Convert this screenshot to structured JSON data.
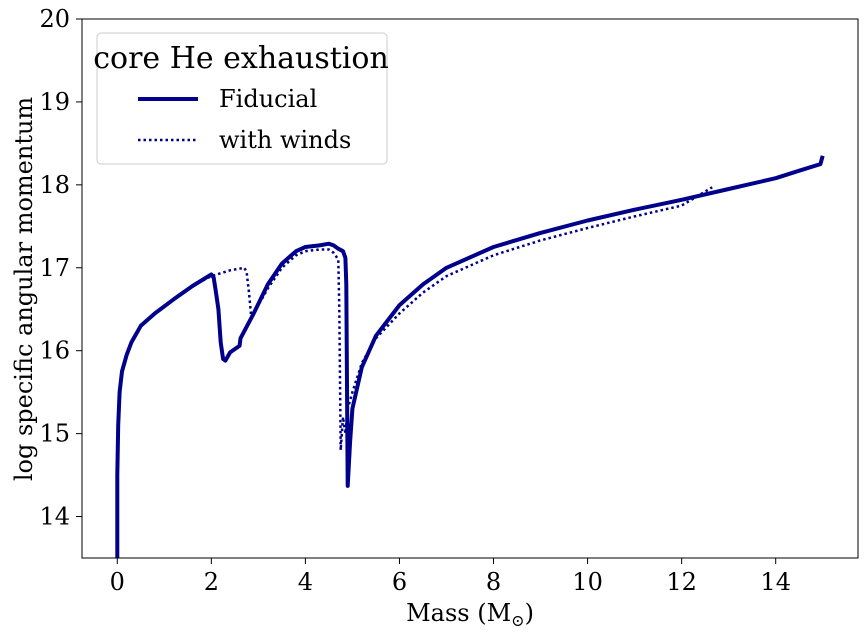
{
  "chart_data": {
    "type": "line",
    "xlabel": "Mass (M",
    "xlabel_sub": "⊙",
    "xlabel_close": ")",
    "ylabel": "log specific angular momentum",
    "xlim": [
      -0.75,
      15.75
    ],
    "ylim": [
      13.5,
      20
    ],
    "xticks": [
      0,
      2,
      4,
      6,
      8,
      10,
      12,
      14
    ],
    "yticks": [
      14,
      15,
      16,
      17,
      18,
      19,
      20
    ],
    "grid": false,
    "legend": {
      "title": "core He exhaustion",
      "placement": "top-left"
    },
    "series": [
      {
        "name": "Fiducial",
        "color": "#00008b",
        "style": "solid",
        "points": [
          [
            0.0,
            13.5
          ],
          [
            0.0,
            14.5
          ],
          [
            0.02,
            15.1
          ],
          [
            0.05,
            15.5
          ],
          [
            0.1,
            15.75
          ],
          [
            0.2,
            15.95
          ],
          [
            0.3,
            16.1
          ],
          [
            0.5,
            16.3
          ],
          [
            0.8,
            16.45
          ],
          [
            1.2,
            16.62
          ],
          [
            1.6,
            16.78
          ],
          [
            2.0,
            16.92
          ],
          [
            2.05,
            16.88
          ],
          [
            2.1,
            16.7
          ],
          [
            2.15,
            16.5
          ],
          [
            2.2,
            16.1
          ],
          [
            2.25,
            15.9
          ],
          [
            2.3,
            15.88
          ],
          [
            2.4,
            15.98
          ],
          [
            2.6,
            16.06
          ],
          [
            2.62,
            16.15
          ],
          [
            2.9,
            16.45
          ],
          [
            3.2,
            16.8
          ],
          [
            3.5,
            17.05
          ],
          [
            3.8,
            17.2
          ],
          [
            4.0,
            17.25
          ],
          [
            4.3,
            17.27
          ],
          [
            4.5,
            17.29
          ],
          [
            4.6,
            17.27
          ],
          [
            4.7,
            17.23
          ],
          [
            4.8,
            17.2
          ],
          [
            4.85,
            17.12
          ],
          [
            4.87,
            16.8
          ],
          [
            4.9,
            14.37
          ],
          [
            4.95,
            14.9
          ],
          [
            5.0,
            15.3
          ],
          [
            5.2,
            15.8
          ],
          [
            5.5,
            16.18
          ],
          [
            6.0,
            16.55
          ],
          [
            6.5,
            16.8
          ],
          [
            7.0,
            17.0
          ],
          [
            8.0,
            17.25
          ],
          [
            9.0,
            17.42
          ],
          [
            10.0,
            17.57
          ],
          [
            11.0,
            17.7
          ],
          [
            12.0,
            17.82
          ],
          [
            13.0,
            17.95
          ],
          [
            14.0,
            18.08
          ],
          [
            14.5,
            18.17
          ],
          [
            14.95,
            18.25
          ],
          [
            15.0,
            18.35
          ]
        ]
      },
      {
        "name": "with winds",
        "color": "#00008b",
        "style": "dotted",
        "points": [
          [
            0.0,
            13.5
          ],
          [
            0.0,
            14.5
          ],
          [
            0.02,
            15.1
          ],
          [
            0.05,
            15.5
          ],
          [
            0.1,
            15.75
          ],
          [
            0.2,
            15.95
          ],
          [
            0.3,
            16.1
          ],
          [
            0.5,
            16.3
          ],
          [
            0.8,
            16.45
          ],
          [
            1.2,
            16.62
          ],
          [
            1.6,
            16.78
          ],
          [
            2.0,
            16.9
          ],
          [
            2.4,
            16.97
          ],
          [
            2.7,
            17.0
          ],
          [
            2.75,
            16.95
          ],
          [
            2.8,
            16.7
          ],
          [
            2.85,
            16.4
          ],
          [
            3.0,
            16.55
          ],
          [
            3.2,
            16.75
          ],
          [
            3.5,
            17.0
          ],
          [
            3.8,
            17.15
          ],
          [
            4.0,
            17.2
          ],
          [
            4.3,
            17.22
          ],
          [
            4.5,
            17.22
          ],
          [
            4.6,
            17.18
          ],
          [
            4.7,
            17.1
          ],
          [
            4.72,
            16.5
          ],
          [
            4.75,
            14.8
          ],
          [
            4.8,
            15.2
          ],
          [
            4.85,
            15.0
          ],
          [
            4.9,
            15.3
          ],
          [
            5.0,
            15.5
          ],
          [
            5.2,
            15.85
          ],
          [
            5.5,
            16.15
          ],
          [
            6.0,
            16.45
          ],
          [
            6.5,
            16.7
          ],
          [
            7.0,
            16.9
          ],
          [
            8.0,
            17.15
          ],
          [
            9.0,
            17.33
          ],
          [
            10.0,
            17.48
          ],
          [
            11.0,
            17.62
          ],
          [
            12.0,
            17.75
          ],
          [
            12.65,
            17.97
          ]
        ]
      }
    ]
  }
}
